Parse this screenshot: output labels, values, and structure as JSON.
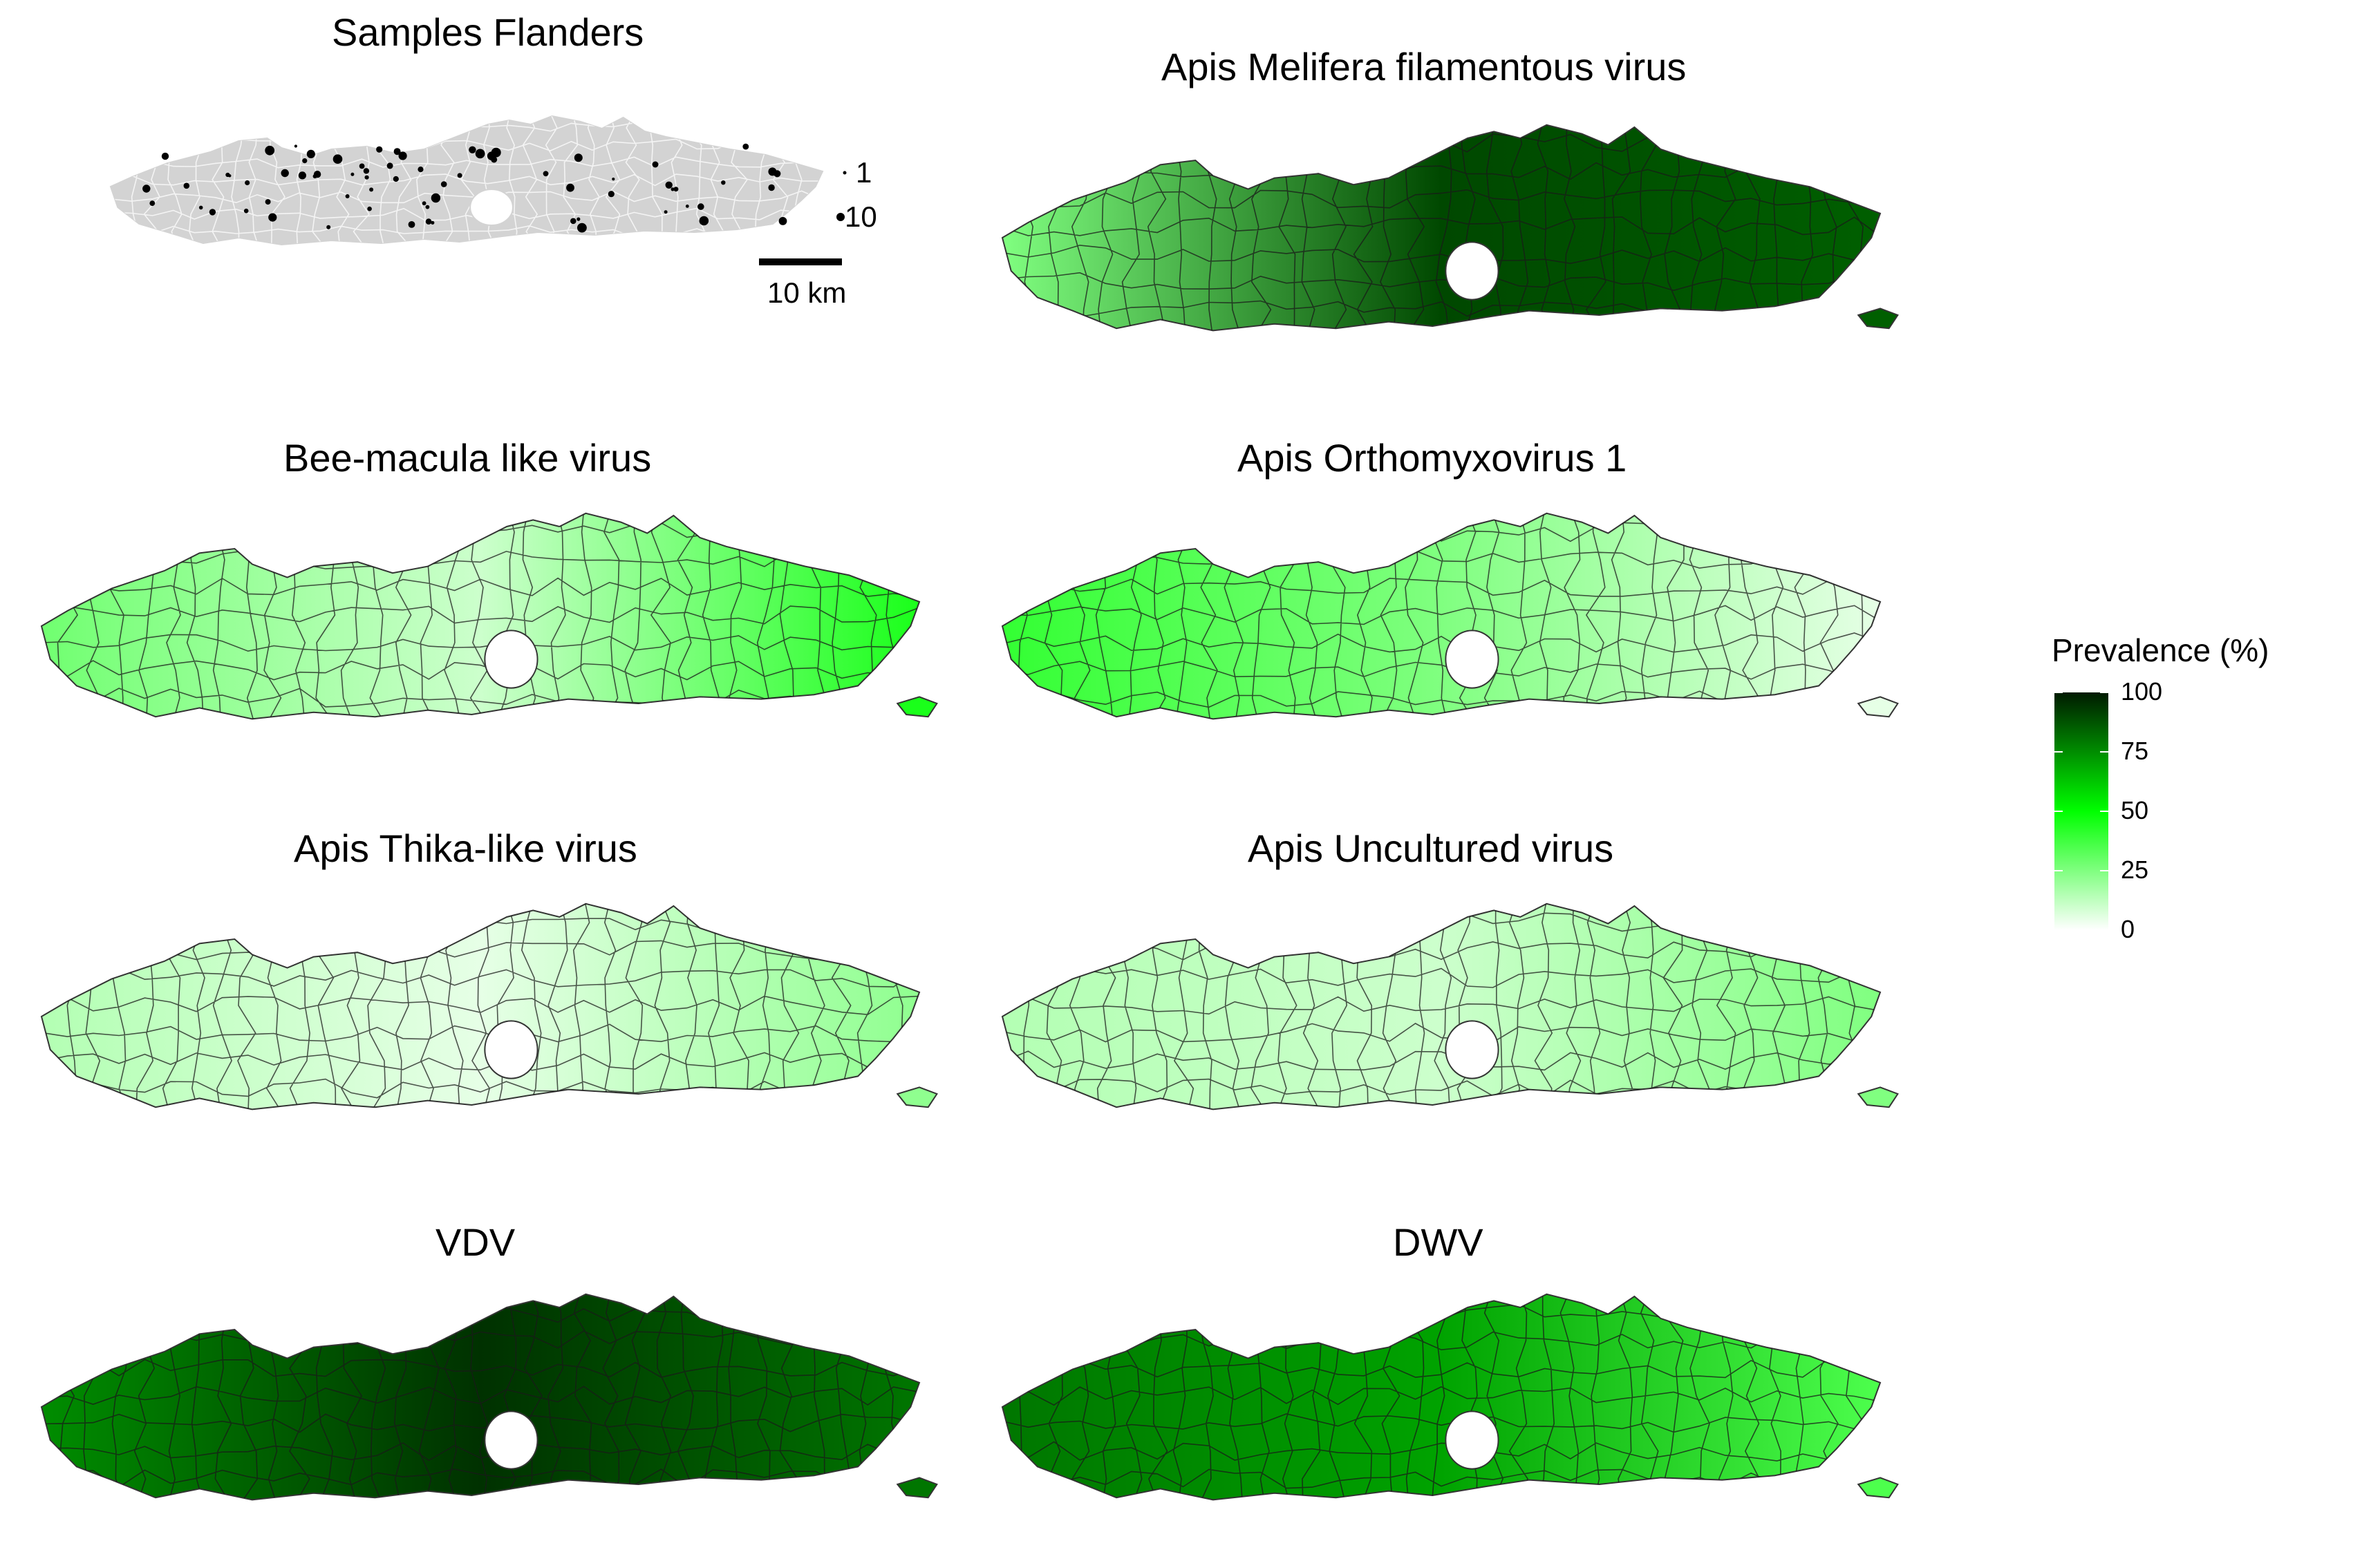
{
  "samples": {
    "title": "Samples Flanders",
    "size_legend": [
      "1",
      "10"
    ],
    "scale_bar": "10 km"
  },
  "panels": [
    {
      "title": "Apis Melifera filamentous virus",
      "west": 25,
      "central": 90,
      "east": 85
    },
    {
      "title": "Bee-macula like virus",
      "west": 28,
      "central": 10,
      "east": 45
    },
    {
      "title": "Apis Orthomyxovirus 1",
      "west": 40,
      "central": 25,
      "east": 5
    },
    {
      "title": "Apis Thika-like virus",
      "west": 15,
      "central": 5,
      "east": 22
    },
    {
      "title": "Apis Uncultured virus",
      "west": 15,
      "central": 10,
      "east": 25
    },
    {
      "title": "VDV",
      "west": 75,
      "central": 95,
      "east": 80
    },
    {
      "title": "DWV",
      "west": 80,
      "central": 70,
      "east": 35
    }
  ],
  "legend": {
    "title": "Prevalence (%)",
    "ticks": [
      "100",
      "75",
      "50",
      "25",
      "0"
    ],
    "low_color": "#ffffff",
    "mid_color": "#00ff00",
    "high_color": "#001a00"
  },
  "region_fill": "#d3d3d3"
}
